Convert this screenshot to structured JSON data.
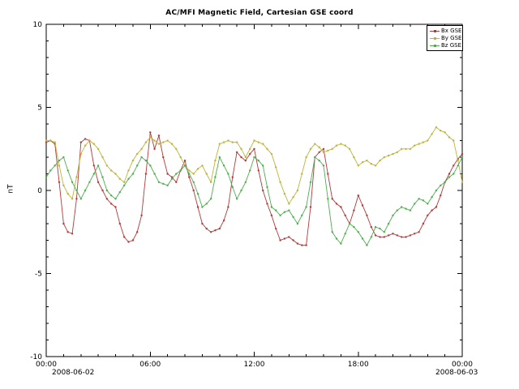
{
  "page": {
    "title": "AC/MFI Magnetic Field, Cartesian GSE coord"
  },
  "chart_data": {
    "type": "line",
    "title": "AC/MFI Magnetic Field, Cartesian GSE coord",
    "xlabel": "",
    "ylabel": "nT",
    "ylim": [
      -10,
      10
    ],
    "yticks": [
      -10,
      -5,
      0,
      5,
      10
    ],
    "y_minor_step": 1,
    "xlim": [
      0,
      24
    ],
    "x_major_step_hours": 6,
    "x_minor_step_hours": 1,
    "xtick_labels": [
      "00:00",
      "06:00",
      "12:00",
      "18:00",
      "00:00"
    ],
    "x_start_date_label": "2008-06-02",
    "x_end_date_label": "2008-06-03",
    "grid": false,
    "legend_position": "top-right",
    "x_start": 0,
    "x_step_hours": 0.25,
    "series": [
      {
        "name": "Bx GSE",
        "color": "#b23a3a",
        "values": [
          2.9,
          3.0,
          2.8,
          0.5,
          -2.0,
          -2.5,
          -2.6,
          -0.5,
          2.9,
          3.1,
          3.0,
          1.5,
          0.5,
          0.0,
          -0.5,
          -0.8,
          -1.0,
          -2.0,
          -2.8,
          -3.1,
          -3.0,
          -2.5,
          -1.5,
          1.0,
          3.5,
          2.5,
          3.3,
          2.0,
          1.0,
          0.8,
          0.5,
          1.2,
          1.8,
          0.8,
          0.0,
          -1.0,
          -2.0,
          -2.3,
          -2.5,
          -2.4,
          -2.3,
          -1.8,
          -1.0,
          0.8,
          2.3,
          2.0,
          1.8,
          2.2,
          2.5,
          1.2,
          0.0,
          -0.8,
          -1.5,
          -2.3,
          -3.0,
          -2.9,
          -2.8,
          -3.0,
          -3.2,
          -3.3,
          -3.3,
          -1.0,
          2.0,
          2.3,
          2.5,
          1.0,
          -0.5,
          -0.8,
          -1.0,
          -1.5,
          -2.0,
          -1.2,
          -0.3,
          -0.9,
          -1.5,
          -2.2,
          -2.7,
          -2.8,
          -2.8,
          -2.7,
          -2.6,
          -2.7,
          -2.8,
          -2.8,
          -2.7,
          -2.6,
          -2.5,
          -2.0,
          -1.5,
          -1.2,
          -1.0,
          -0.3,
          0.5,
          1.0,
          1.5,
          1.9,
          2.2
        ]
      },
      {
        "name": "By GSE",
        "color": "#bdb439",
        "values": [
          3.0,
          3.0,
          2.9,
          1.5,
          0.3,
          -0.2,
          -0.5,
          0.8,
          2.2,
          2.7,
          3.0,
          2.8,
          2.5,
          2.0,
          1.5,
          1.2,
          1.0,
          0.7,
          0.5,
          1.2,
          1.8,
          2.2,
          2.5,
          2.9,
          3.2,
          3.0,
          2.8,
          2.9,
          3.0,
          2.8,
          2.5,
          2.0,
          1.5,
          1.2,
          1.0,
          1.3,
          1.5,
          1.0,
          0.5,
          1.8,
          2.8,
          2.9,
          3.0,
          2.9,
          2.9,
          2.5,
          2.0,
          2.5,
          3.0,
          2.9,
          2.8,
          2.5,
          2.2,
          1.4,
          0.5,
          -0.2,
          -0.8,
          -0.4,
          0.0,
          1.0,
          2.0,
          2.5,
          2.8,
          2.6,
          2.3,
          2.4,
          2.5,
          2.7,
          2.8,
          2.7,
          2.5,
          2.0,
          1.5,
          1.7,
          1.8,
          1.6,
          1.5,
          1.8,
          2.0,
          2.1,
          2.2,
          2.3,
          2.5,
          2.5,
          2.5,
          2.7,
          2.8,
          2.9,
          3.0,
          3.4,
          3.8,
          3.6,
          3.5,
          3.2,
          3.0,
          1.8,
          0.5
        ]
      },
      {
        "name": "Bz GSE",
        "color": "#4fae4f",
        "values": [
          0.8,
          1.2,
          1.5,
          1.8,
          2.0,
          1.2,
          0.5,
          0.0,
          -0.5,
          0.0,
          0.5,
          1.0,
          1.5,
          0.8,
          0.0,
          -0.3,
          -0.5,
          -0.1,
          0.3,
          0.7,
          1.0,
          1.5,
          2.0,
          1.8,
          1.5,
          1.0,
          0.5,
          0.4,
          0.3,
          0.7,
          1.0,
          1.2,
          1.5,
          1.0,
          0.5,
          -0.2,
          -1.0,
          -0.8,
          -0.5,
          0.8,
          2.0,
          1.5,
          1.0,
          0.2,
          -0.5,
          0.0,
          0.5,
          1.2,
          2.0,
          1.8,
          1.5,
          0.2,
          -1.0,
          -1.2,
          -1.5,
          -1.3,
          -1.2,
          -1.6,
          -2.0,
          -1.5,
          -1.0,
          0.5,
          2.0,
          1.8,
          1.5,
          -0.5,
          -2.5,
          -2.9,
          -3.2,
          -2.6,
          -2.0,
          -2.2,
          -2.5,
          -2.9,
          -3.3,
          -2.8,
          -2.2,
          -2.3,
          -2.5,
          -2.0,
          -1.5,
          -1.2,
          -1.0,
          -1.1,
          -1.2,
          -0.8,
          -0.5,
          -0.6,
          -0.8,
          -0.4,
          0.0,
          0.3,
          0.5,
          0.8,
          1.0,
          1.5,
          2.0
        ]
      }
    ]
  }
}
